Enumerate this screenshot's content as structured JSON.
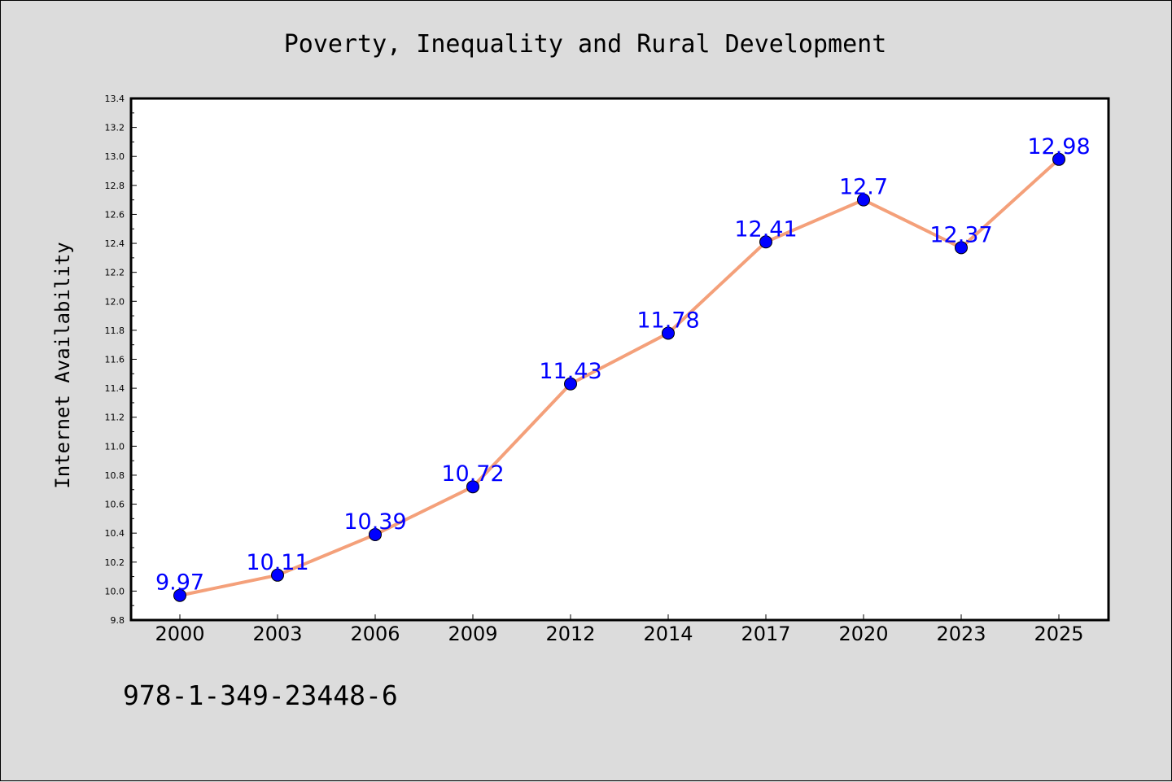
{
  "chart_data": {
    "type": "line",
    "title": "Poverty, Inequality and Rural Development",
    "ylabel": "Internet Availability",
    "xlabel": "",
    "categories": [
      "2000",
      "2003",
      "2006",
      "2009",
      "2012",
      "2014",
      "2017",
      "2020",
      "2023",
      "2025"
    ],
    "series": [
      {
        "values": [
          9.97,
          10.11,
          10.39,
          10.72,
          11.43,
          11.78,
          12.41,
          12.7,
          12.37,
          12.98
        ],
        "data_labels": [
          "9.97",
          "10.11",
          "10.39",
          "10.72",
          "11.43",
          "11.78",
          "12.41",
          "12.7",
          "12.37",
          "12.98"
        ],
        "line_color": "#f4a07a",
        "marker_color": "#0000ff"
      }
    ],
    "ylim": [
      9.8,
      13.4
    ],
    "y_ticks": [
      "9.8",
      "10.0",
      "10.2",
      "10.4",
      "10.6",
      "10.8",
      "11.0",
      "11.2",
      "11.4",
      "11.6",
      "11.8",
      "12.0",
      "12.2",
      "12.4",
      "12.6",
      "12.8",
      "13.0",
      "13.2",
      "13.4"
    ],
    "grid": false,
    "legend": "none",
    "footnote": "978-1-349-23448-6"
  },
  "colors": {
    "background": "#dcdcdc",
    "plot_background": "#ffffff",
    "line": "#f4a07a",
    "marker": "#0000ff",
    "data_label": "#0000ff"
  }
}
